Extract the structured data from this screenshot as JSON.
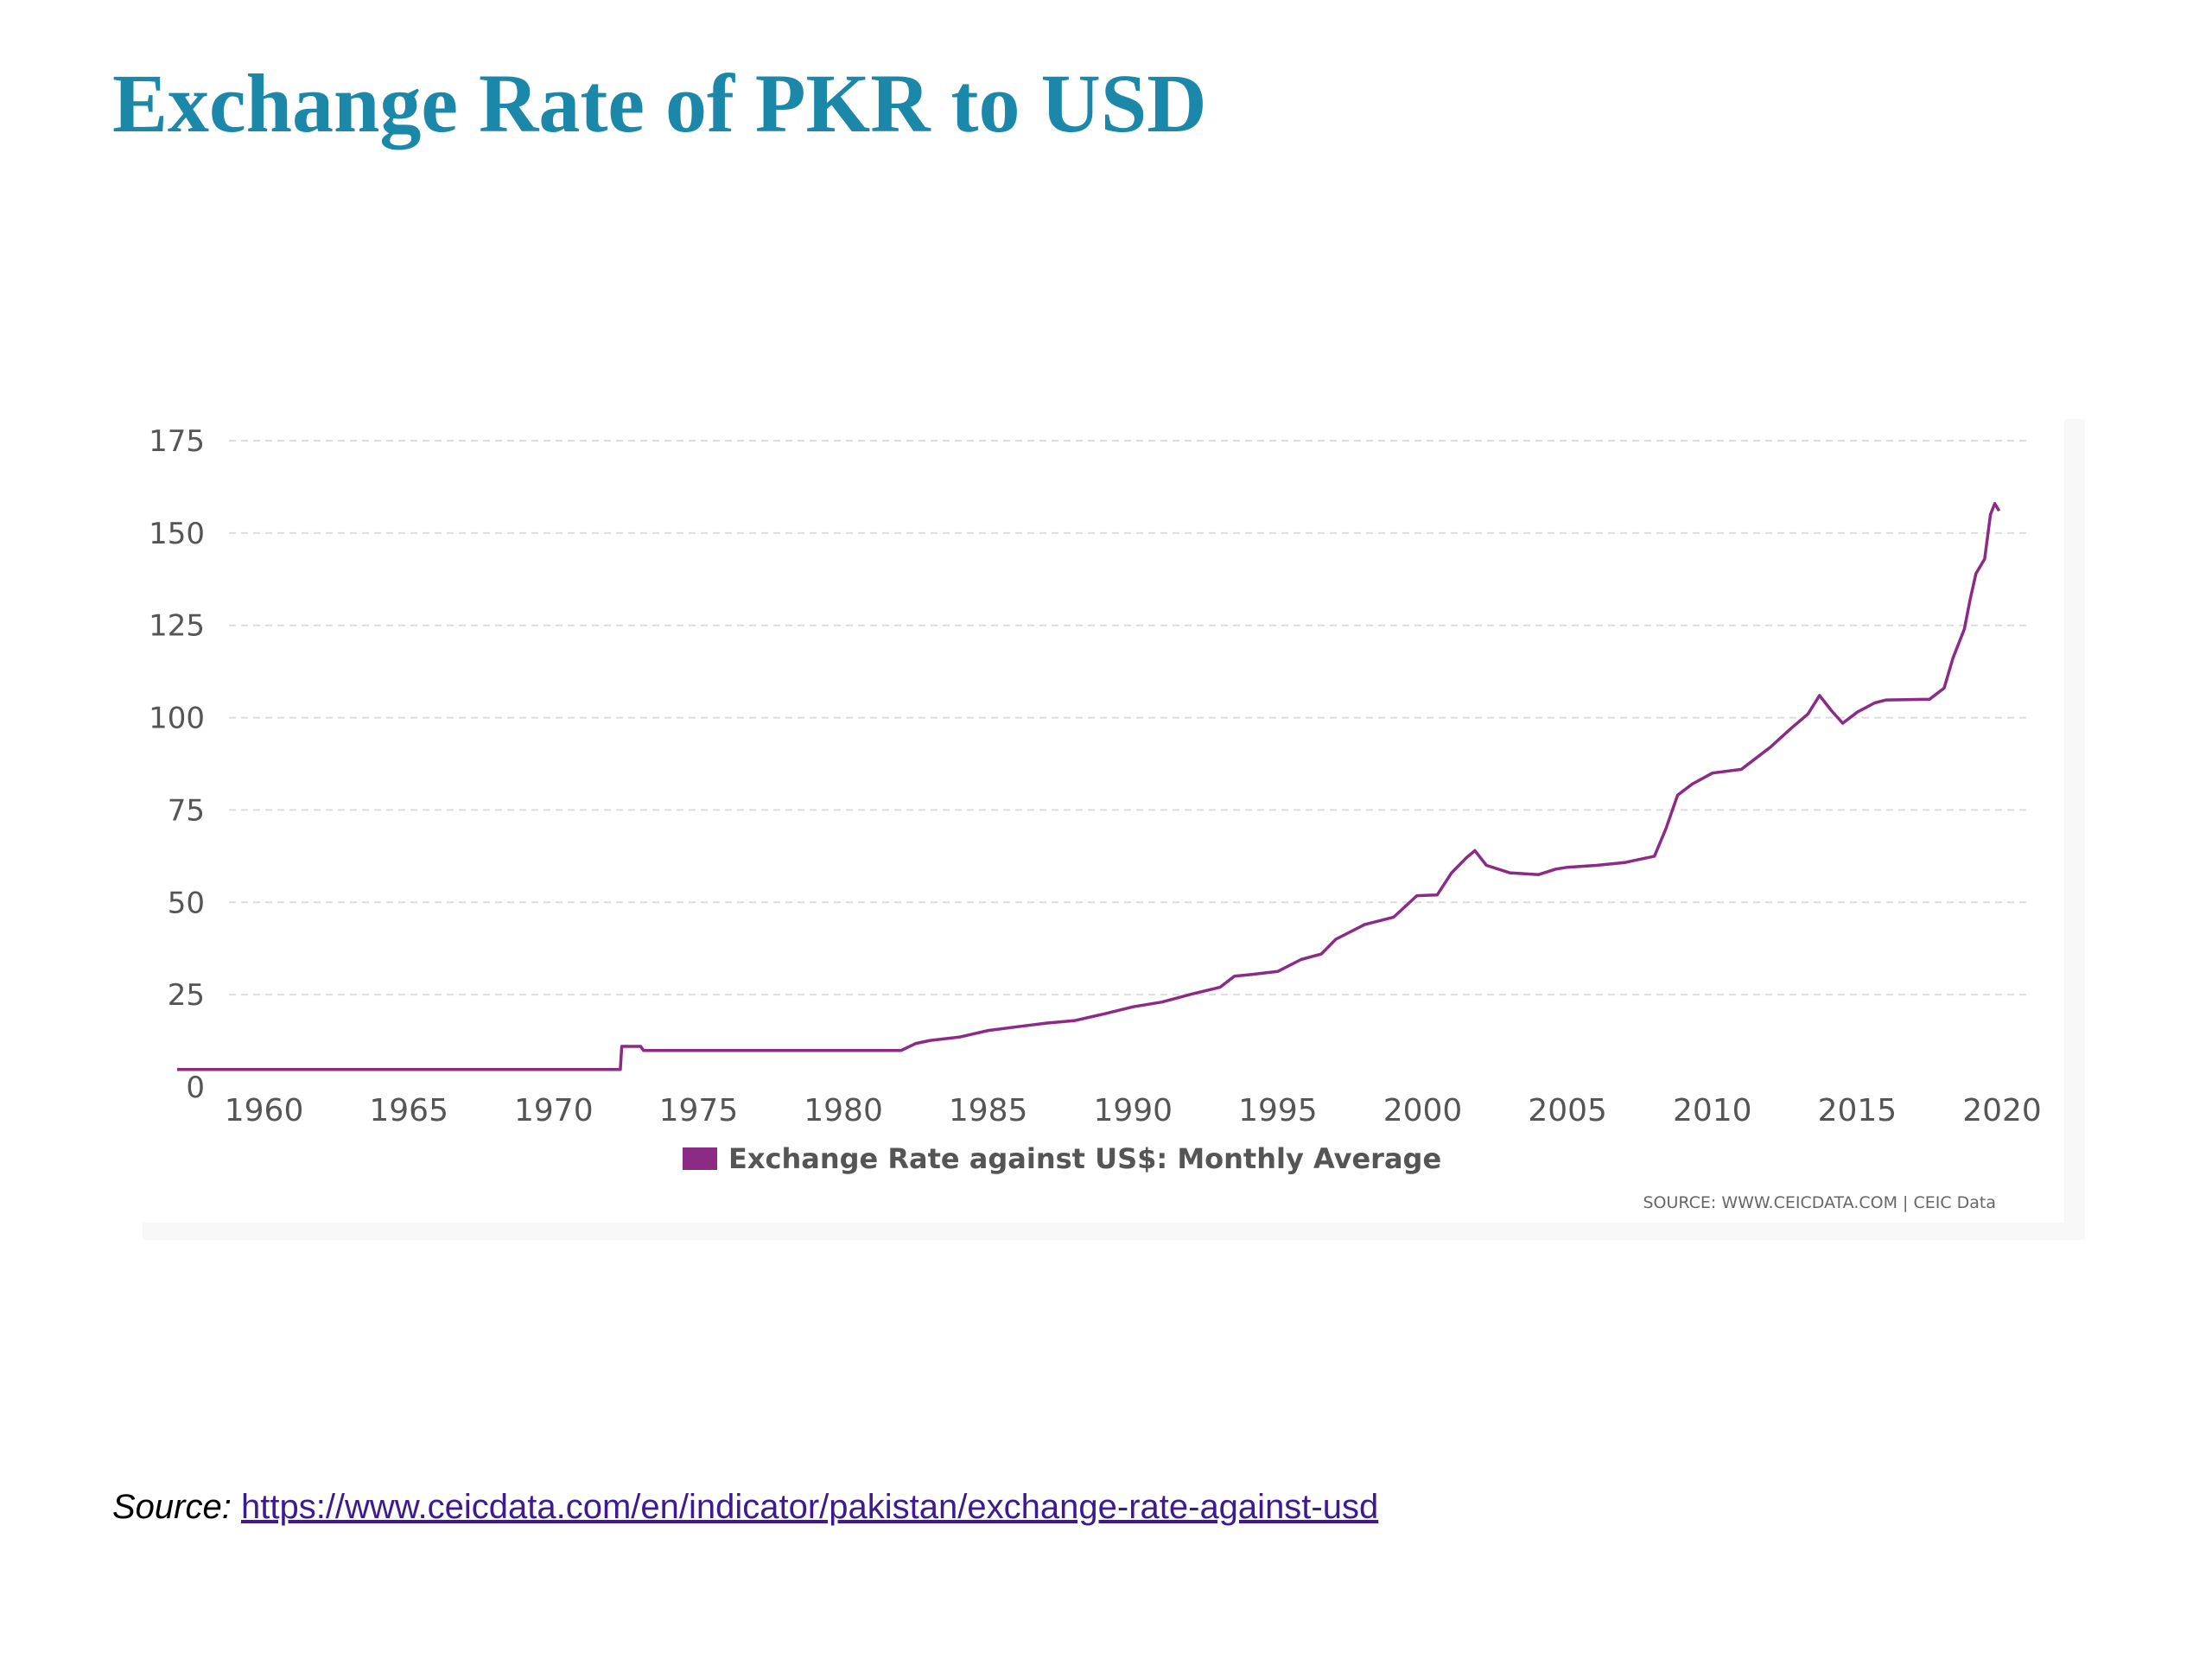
{
  "slide": {
    "title": "Exchange Rate of PKR to USD",
    "source_label": "Source:",
    "source_url": "https://www.ceicdata.com/en/indicator/pakistan/exchange-rate-against-usd"
  },
  "colors": {
    "title": "#1b87a9",
    "series": "#8b2b86",
    "grid": "#dddddd",
    "link": "#3d1a91"
  },
  "chart_data": {
    "type": "line",
    "title": "",
    "xlabel": "",
    "ylabel": "",
    "xlim": [
      1957,
      2020
    ],
    "ylim": [
      0,
      175
    ],
    "grid": "horizontal-dashed",
    "legend_position": "bottom-center",
    "x_ticks": [
      "1960",
      "1965",
      "1970",
      "1975",
      "1980",
      "1985",
      "1990",
      "1995",
      "2000",
      "2005",
      "2010",
      "2015",
      "2020"
    ],
    "y_ticks": [
      "0",
      "25",
      "50",
      "75",
      "100",
      "125",
      "150",
      "175"
    ],
    "credit": "SOURCE: WWW.CEICDATA.COM | CEIC Data",
    "series": [
      {
        "name": "Exchange Rate against US$: Monthly Average",
        "points": [
          [
            1957.0,
            4.76
          ],
          [
            1972.3,
            4.76
          ],
          [
            1972.35,
            11.0
          ],
          [
            1973.0,
            11.0
          ],
          [
            1973.1,
            9.9
          ],
          [
            1982.0,
            9.9
          ],
          [
            1982.5,
            11.8
          ],
          [
            1983.0,
            12.6
          ],
          [
            1984.0,
            13.5
          ],
          [
            1985.0,
            15.3
          ],
          [
            1986.0,
            16.3
          ],
          [
            1987.0,
            17.3
          ],
          [
            1988.0,
            18.0
          ],
          [
            1989.0,
            19.8
          ],
          [
            1990.0,
            21.7
          ],
          [
            1991.0,
            23.0
          ],
          [
            1992.0,
            25.1
          ],
          [
            1993.0,
            27.0
          ],
          [
            1993.5,
            30.0
          ],
          [
            1994.0,
            30.4
          ],
          [
            1995.0,
            31.3
          ],
          [
            1995.8,
            34.5
          ],
          [
            1996.5,
            36.0
          ],
          [
            1997.0,
            40.0
          ],
          [
            1998.0,
            44.0
          ],
          [
            1999.0,
            46.0
          ],
          [
            1999.8,
            51.8
          ],
          [
            2000.5,
            52.0
          ],
          [
            2001.0,
            58.0
          ],
          [
            2001.5,
            62.0
          ],
          [
            2001.8,
            64.0
          ],
          [
            2002.2,
            60.0
          ],
          [
            2003.0,
            58.0
          ],
          [
            2004.0,
            57.5
          ],
          [
            2004.6,
            59.0
          ],
          [
            2005.0,
            59.5
          ],
          [
            2006.0,
            60.0
          ],
          [
            2007.0,
            60.8
          ],
          [
            2008.0,
            62.5
          ],
          [
            2008.4,
            70.0
          ],
          [
            2008.8,
            79.0
          ],
          [
            2009.3,
            82.0
          ],
          [
            2010.0,
            85.0
          ],
          [
            2011.0,
            86.0
          ],
          [
            2012.0,
            92.0
          ],
          [
            2012.7,
            97.0
          ],
          [
            2013.3,
            101.0
          ],
          [
            2013.7,
            106.0
          ],
          [
            2014.1,
            102.0
          ],
          [
            2014.5,
            98.5
          ],
          [
            2015.0,
            101.5
          ],
          [
            2015.6,
            104.0
          ],
          [
            2016.0,
            104.8
          ],
          [
            2017.5,
            105.0
          ],
          [
            2018.0,
            108.0
          ],
          [
            2018.3,
            116.0
          ],
          [
            2018.7,
            124.0
          ],
          [
            2018.9,
            132.0
          ],
          [
            2019.1,
            139.0
          ],
          [
            2019.4,
            143.0
          ],
          [
            2019.6,
            155.0
          ],
          [
            2019.75,
            158.0
          ],
          [
            2019.9,
            156.0
          ]
        ]
      }
    ]
  }
}
